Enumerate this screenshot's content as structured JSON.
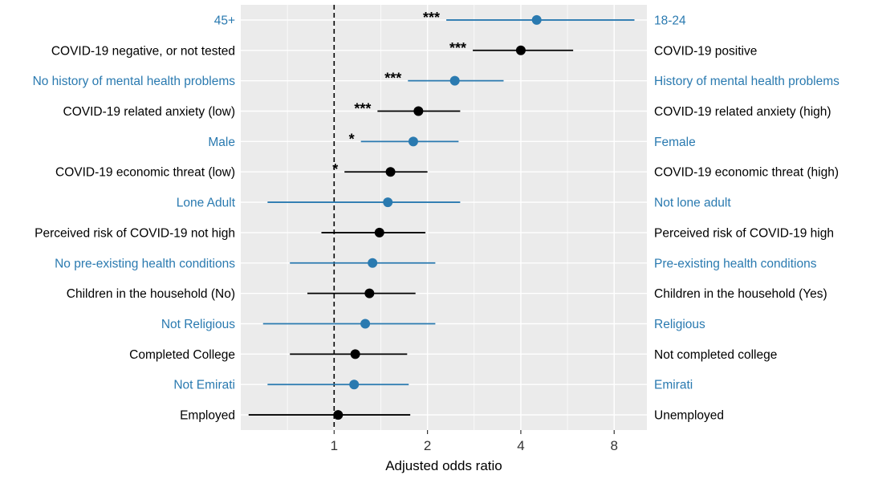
{
  "chart_data": {
    "type": "forest",
    "xlabel": "Adjusted odds ratio",
    "x_scale": "log2",
    "xlim": [
      0.5,
      10.2
    ],
    "x_ticks": [
      1,
      2,
      4,
      8
    ],
    "x_tick_labels": [
      "1",
      "2",
      "4",
      "8"
    ],
    "reference_line": 1,
    "grid": true,
    "colors": {
      "blue": "#2a7ab0",
      "black": "#000000",
      "panel": "#ebebeb",
      "grid": "#ffffff"
    },
    "rows": [
      {
        "left": "45+",
        "right": "18-24",
        "or": 4.5,
        "lo": 2.3,
        "hi": 9.3,
        "sig": "***",
        "color": "blue"
      },
      {
        "left": "COVID-19 negative, or not tested",
        "right": "COVID-19 positive",
        "or": 4.0,
        "lo": 2.8,
        "hi": 5.9,
        "sig": "***",
        "color": "black"
      },
      {
        "left": "No history of mental health problems",
        "right": "History of mental health problems",
        "or": 2.45,
        "lo": 1.73,
        "hi": 3.52,
        "sig": "***",
        "color": "blue"
      },
      {
        "left": "COVID-19 related anxiety (low)",
        "right": "COVID-19 related anxiety (high)",
        "or": 1.87,
        "lo": 1.38,
        "hi": 2.55,
        "sig": "***",
        "color": "black"
      },
      {
        "left": "Male",
        "right": "Female",
        "or": 1.8,
        "lo": 1.22,
        "hi": 2.52,
        "sig": "*",
        "color": "blue"
      },
      {
        "left": "COVID-19 economic threat (low)",
        "right": "COVID-19 economic threat (high)",
        "or": 1.52,
        "lo": 1.08,
        "hi": 2.0,
        "sig": "*",
        "color": "black"
      },
      {
        "left": "Lone Adult",
        "right": "Not lone adult",
        "or": 1.49,
        "lo": 0.61,
        "hi": 2.55,
        "sig": "",
        "color": "blue"
      },
      {
        "left": "Perceived risk of COVID-19 not high",
        "right": "Perceived risk of COVID-19 high",
        "or": 1.4,
        "lo": 0.91,
        "hi": 1.97,
        "sig": "",
        "color": "black"
      },
      {
        "left": "No pre-existing health conditions",
        "right": "Pre-existing health conditions",
        "or": 1.33,
        "lo": 0.72,
        "hi": 2.12,
        "sig": "",
        "color": "blue"
      },
      {
        "left": "Children in the household (No)",
        "right": "Children in the household (Yes)",
        "or": 1.3,
        "lo": 0.82,
        "hi": 1.83,
        "sig": "",
        "color": "black"
      },
      {
        "left": "Not Religious",
        "right": "Religious",
        "or": 1.26,
        "lo": 0.59,
        "hi": 2.12,
        "sig": "",
        "color": "blue"
      },
      {
        "left": "Completed College",
        "right": "Not completed college",
        "or": 1.17,
        "lo": 0.72,
        "hi": 1.72,
        "sig": "",
        "color": "black"
      },
      {
        "left": "Not Emirati",
        "right": "Emirati",
        "or": 1.16,
        "lo": 0.61,
        "hi": 1.74,
        "sig": "",
        "color": "blue"
      },
      {
        "left": "Employed",
        "right": "Unemployed",
        "or": 1.03,
        "lo": 0.53,
        "hi": 1.76,
        "sig": "",
        "color": "black"
      }
    ]
  }
}
